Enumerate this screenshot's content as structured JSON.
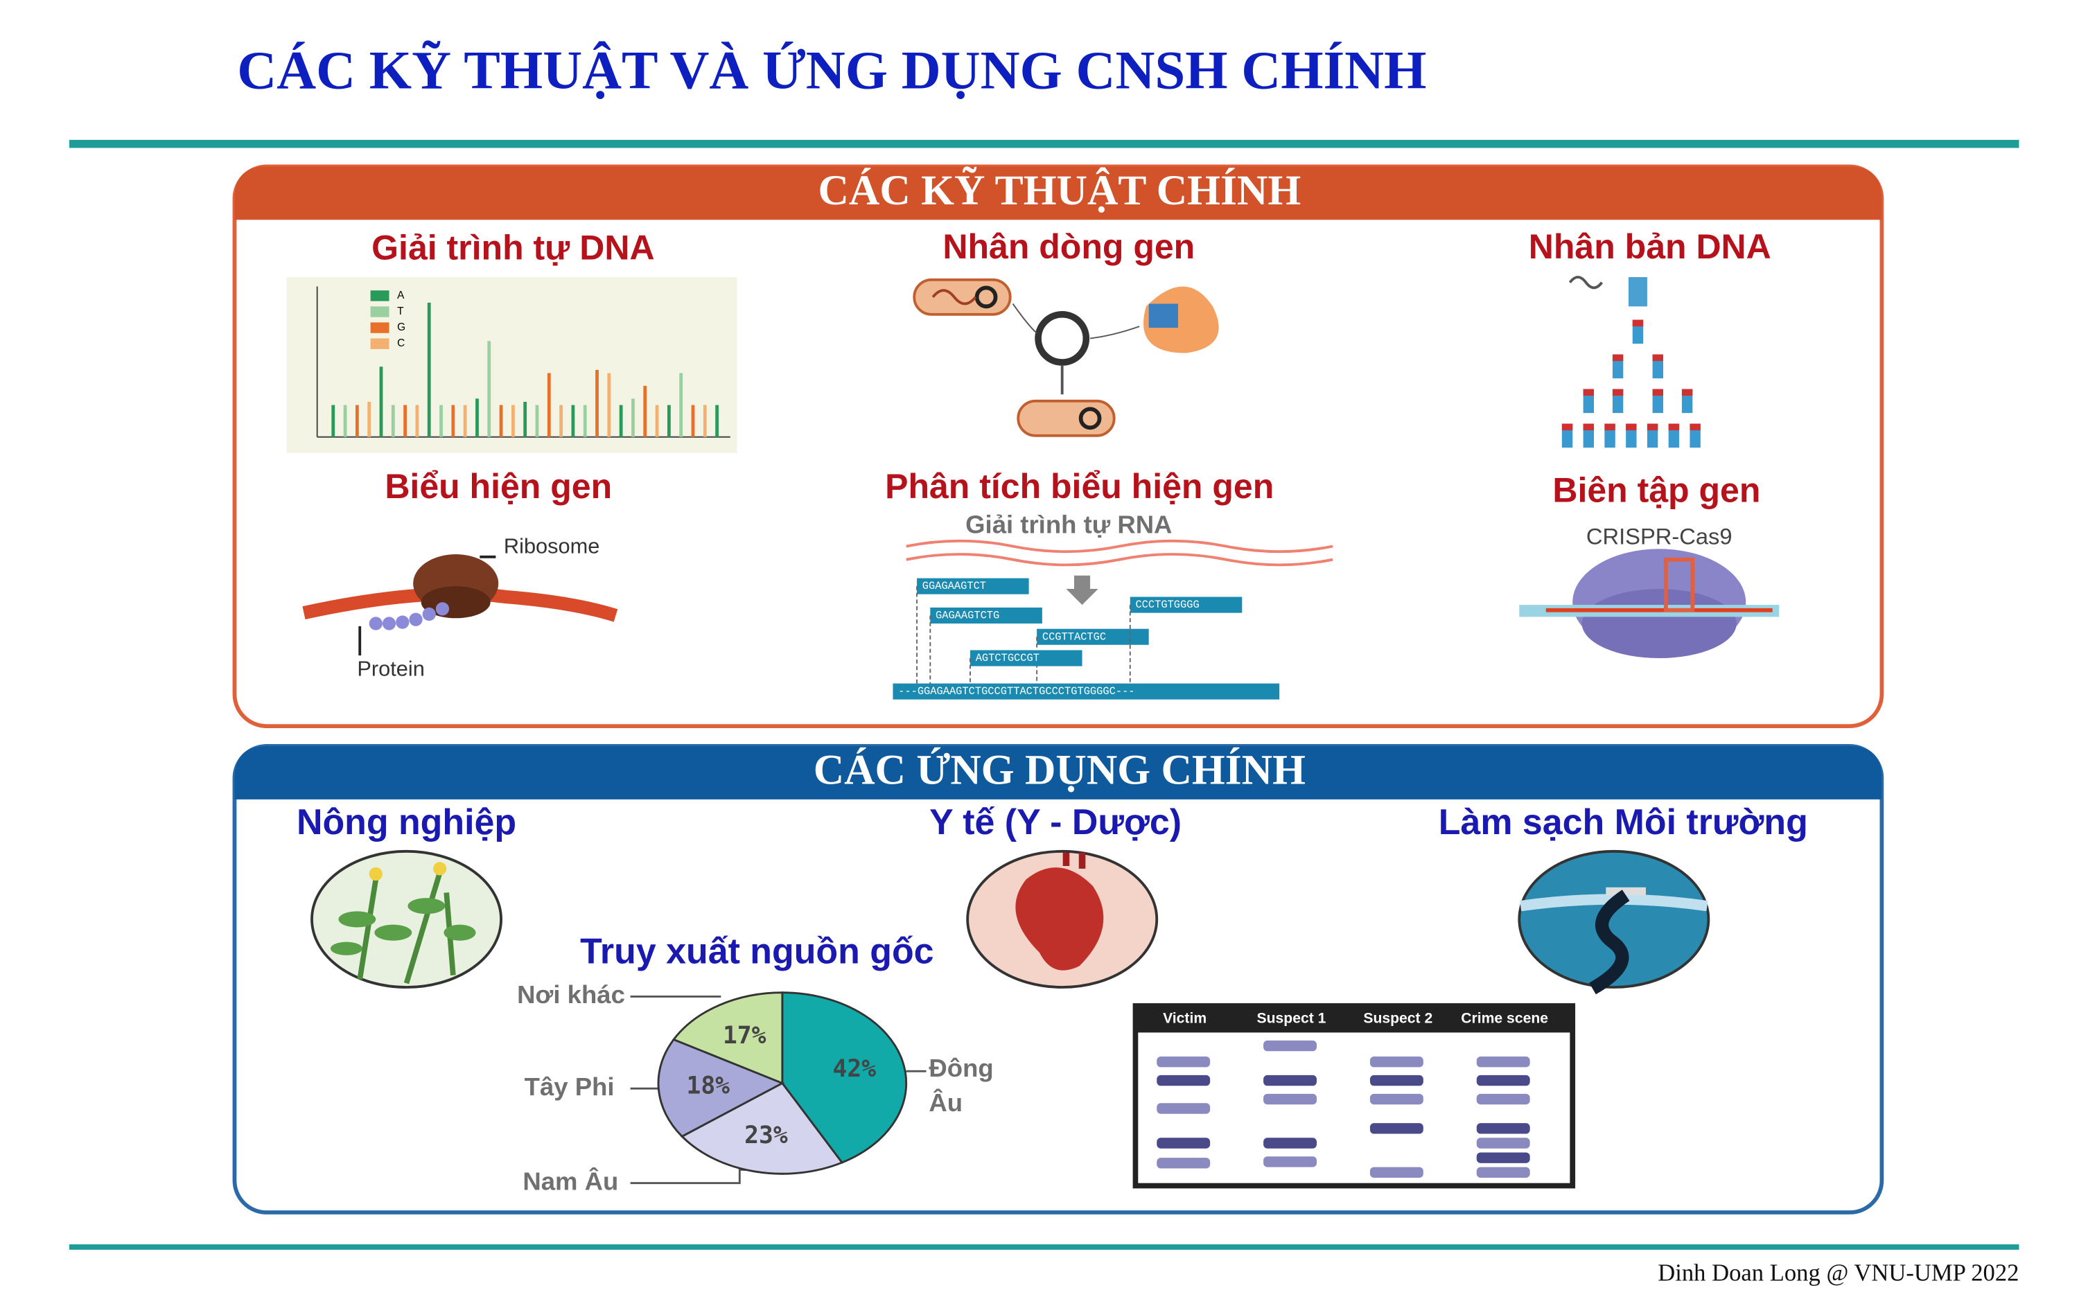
{
  "title": "CÁC KỸ THUẬT VÀ ỨNG DỤNG CNSH CHÍNH",
  "techniques": {
    "heading": "CÁC KỸ THUẬT CHÍNH",
    "items": [
      "Giải trình tự DNA",
      "Nhân dòng gen",
      "Nhân bản DNA",
      "Biểu hiện gen",
      "Phân tích biểu hiện gen",
      "Biên tập gen"
    ],
    "sequencing_legend": [
      "A",
      "T",
      "G",
      "C"
    ],
    "ribosome_labels": [
      "Ribosome",
      "Protein"
    ],
    "rna": {
      "caption": "Giải trình tự RNA",
      "reads": [
        "GGAGAAGTCT",
        "GAGAAGTCTG",
        "CCGTTACTGC",
        "AGTCTGCCGT",
        "CCCTGTGGGG"
      ],
      "contig": "---GGAGAAGTCTGCCGTTACTGCCCTGTGGGGC---"
    },
    "crispr": "CRISPR-Cas9"
  },
  "applications": {
    "heading": "CÁC ỨNG DỤNG CHÍNH",
    "items": [
      "Nông nghiệp",
      "Y tế (Y - Dược)",
      "Làm sạch Môi trường"
    ],
    "traceability": "Truy xuất nguồn gốc",
    "pie": {
      "slices": [
        {
          "label": "Đông Âu",
          "value": 42,
          "value_label": "42%",
          "color": "#12aaa8"
        },
        {
          "label": "Nam Âu",
          "value": 23,
          "value_label": "23%",
          "color": "#d4d4ee"
        },
        {
          "label": "Tây Phi",
          "value": 18,
          "value_label": "18%",
          "color": "#a9a9d9"
        },
        {
          "label": "Nơi khác",
          "value": 17,
          "value_label": "17%",
          "color": "#c6e2a2"
        }
      ]
    },
    "gel_headers": [
      "Victim",
      "Suspect 1",
      "Suspect 2",
      "Crime scene"
    ]
  },
  "footer": "Dinh Doan Long @ VNU-UMP 2022"
}
